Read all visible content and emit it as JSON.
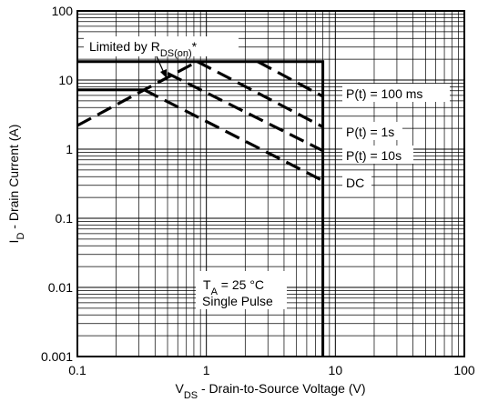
{
  "chart_data": {
    "type": "line",
    "title": "",
    "xlabel": {
      "main": "V",
      "sub": "DS",
      "rest": " - Drain-to-Source Voltage (V)"
    },
    "ylabel": {
      "main": "I",
      "sub": "D",
      "rest": " - Drain Current (A)"
    },
    "x_scale": "log",
    "y_scale": "log",
    "xlim": [
      0.1,
      100
    ],
    "ylim": [
      0.001,
      100
    ],
    "grid": true,
    "x_ticks": [
      {
        "value": 0.1,
        "label": "0.1"
      },
      {
        "value": 1,
        "label": "1"
      },
      {
        "value": 10,
        "label": "10"
      },
      {
        "value": 100,
        "label": "100"
      }
    ],
    "y_ticks": [
      {
        "value": 0.001,
        "label": "0.001"
      },
      {
        "value": 0.01,
        "label": "0.01"
      },
      {
        "value": 0.1,
        "label": "0.1"
      },
      {
        "value": 1,
        "label": "1"
      },
      {
        "value": 10,
        "label": "10"
      },
      {
        "value": 100,
        "label": "100"
      }
    ],
    "series": [
      {
        "name": "",
        "style": "solid",
        "points": [
          [
            0.1,
            18.5
          ],
          [
            8,
            18.5
          ],
          [
            8,
            0.001
          ]
        ]
      },
      {
        "name": "",
        "style": "solid",
        "points": [
          [
            0.1,
            7.2
          ],
          [
            0.33,
            7.2
          ]
        ]
      },
      {
        "name": "Limited by RDS(on)*",
        "style": "dashed",
        "points": [
          [
            0.1,
            2.2
          ],
          [
            0.85,
            18.5
          ]
        ]
      },
      {
        "name": "P(t) = 100 ms",
        "style": "dashed",
        "points": [
          [
            2.5,
            18.5
          ],
          [
            8,
            5.8
          ]
        ]
      },
      {
        "name": "P(t) = 1s",
        "style": "dashed",
        "points": [
          [
            0.85,
            18.5
          ],
          [
            8,
            2.1
          ]
        ]
      },
      {
        "name": "P(t) = 10s",
        "style": "dashed",
        "points": [
          [
            0.5,
            12.5
          ],
          [
            8,
            0.95
          ]
        ]
      },
      {
        "name": "DC",
        "style": "dashed",
        "points": [
          [
            0.33,
            7.2
          ],
          [
            8,
            0.35
          ]
        ]
      }
    ],
    "annotations": {
      "limited": {
        "main": "Limited by R",
        "sub": "DS(on)",
        "rest": "*"
      },
      "p100ms": "P(t) = 100 ms",
      "p1s": "P(t) = 1s",
      "p10s": "P(t) = 10s",
      "dc": "DC",
      "ta": {
        "main": "T",
        "sub": "A",
        "rest": " = 25 °C"
      },
      "pulse": "Single Pulse"
    }
  }
}
